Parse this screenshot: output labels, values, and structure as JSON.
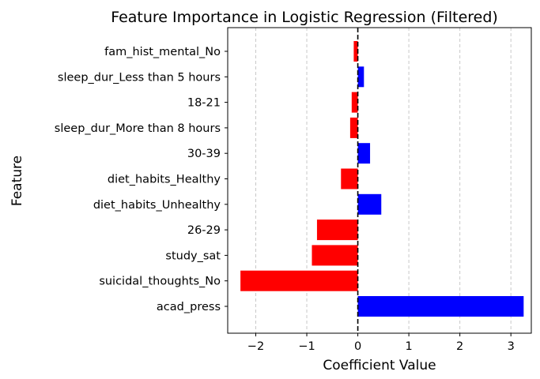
{
  "chart_data": {
    "type": "bar",
    "orientation": "horizontal",
    "title": "Feature Importance in Logistic Regression (Filtered)",
    "xlabel": "Coefficient Value",
    "ylabel": "Feature",
    "xlim": [
      -2.55,
      3.4
    ],
    "xticks": [
      -2,
      -1,
      0,
      1,
      2,
      3
    ],
    "xtick_labels": [
      "−2",
      "−1",
      "0",
      "1",
      "2",
      "3"
    ],
    "grid": "x-dashed",
    "zero_line": "dashed-black",
    "positive_color": "#0000ff",
    "negative_color": "#ff0000",
    "categories": [
      "fam_hist_mental_No",
      "sleep_dur_Less than 5 hours",
      "18-21",
      "sleep_dur_More than 8 hours",
      "30-39",
      "diet_habits_Healthy",
      "diet_habits_Unhealthy",
      "26-29",
      "study_sat",
      "suicidal_thoughts_No",
      "acad_press"
    ],
    "values": [
      -0.08,
      0.12,
      -0.12,
      -0.15,
      0.24,
      -0.33,
      0.46,
      -0.8,
      -0.9,
      -2.3,
      3.25
    ]
  }
}
